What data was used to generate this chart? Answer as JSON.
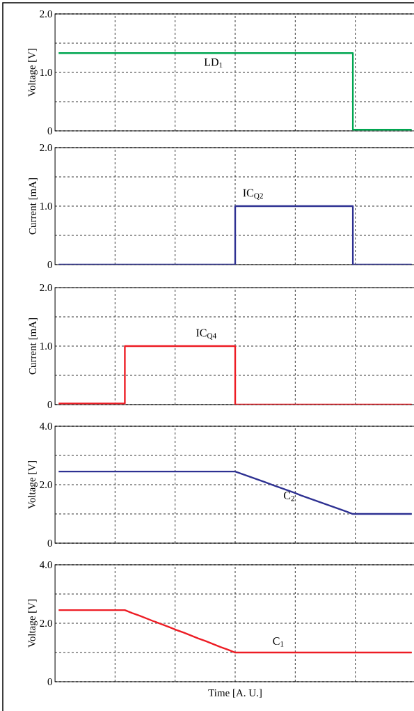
{
  "chart_data": [
    {
      "type": "step",
      "ylabel": "Voltage [V]",
      "categories": [
        null,
        null,
        null,
        null,
        null,
        null,
        null,
        null,
        null,
        null,
        null,
        null,
        null,
        null,
        null,
        null,
        null,
        null,
        null,
        null,
        null,
        null,
        null,
        null,
        null,
        null,
        null,
        null,
        null,
        null,
        null,
        null,
        null,
        null,
        null,
        null,
        null,
        null,
        null,
        null,
        null,
        null,
        null,
        null,
        null,
        null,
        null,
        null,
        null
      ],
      "series": [
        {
          "color": "#00a651",
          "values": [
            1.33,
            1.33,
            1.33,
            1.33,
            1.33,
            1.33,
            1.33,
            1.33,
            1.33,
            1.33,
            1.33,
            1.33,
            1.33,
            1.33,
            1.33,
            1.33,
            1.33,
            1.33,
            1.33,
            1.33,
            1.33,
            1.33,
            1.33,
            1.33,
            1.33,
            1.33,
            1.33,
            1.33,
            1.33,
            1.33,
            1.33,
            1.33,
            1.33,
            1.33,
            1.33,
            1.33,
            1.33,
            1.33,
            1.33,
            1.33,
            0.02,
            0.02,
            0.02,
            0.02,
            0.02,
            0.02,
            0.02,
            0.02,
            0.02
          ]
        }
      ],
      "ylim": [
        0,
        2
      ],
      "yticks": [
        0,
        {
          "value": 0.5,
          "label": null
        },
        {
          "value": 1,
          "label": "1.0"
        },
        {
          "value": 1.5,
          "label": null
        },
        {
          "value": 2,
          "label": "2.0"
        }
      ],
      "grid": true,
      "tick_labels": "y",
      "annotations": [
        "LD$_{1}$"
      ]
    },
    {
      "type": "step",
      "ylabel": "Current [mA]",
      "categories": [
        null,
        null,
        null,
        null,
        null,
        null,
        null,
        null,
        null,
        null,
        null,
        null,
        null,
        null,
        null,
        null,
        null,
        null,
        null,
        null,
        null,
        null,
        null,
        null,
        null,
        null,
        null,
        null,
        null,
        null,
        null,
        null,
        null,
        null,
        null,
        null,
        null,
        null,
        null,
        null,
        null,
        null,
        null,
        null,
        null,
        null,
        null,
        null,
        null
      ],
      "series": [
        {
          "color": "#2e3192",
          "values": [
            0,
            0,
            0,
            0,
            0,
            0,
            0,
            0,
            0,
            0,
            0,
            0,
            0,
            0,
            0,
            0,
            0,
            0,
            0,
            0,
            0,
            0,
            0,
            0,
            1.0,
            1.0,
            1.0,
            1.0,
            1.0,
            1.0,
            1.0,
            1.0,
            1.0,
            1.0,
            1.0,
            1.0,
            1.0,
            1.0,
            1.0,
            1.0,
            0,
            0,
            0,
            0,
            0,
            0,
            0,
            0,
            0
          ]
        }
      ],
      "ylim": [
        0,
        2
      ],
      "yticks": [
        0,
        {
          "value": 0.5,
          "label": null
        },
        {
          "value": 1,
          "label": "1.0"
        },
        {
          "value": 1.5,
          "label": null
        },
        {
          "value": 2,
          "label": "2.0"
        }
      ],
      "grid": true,
      "tick_labels": "y",
      "annotations": [
        "IC$_{Q2}$"
      ]
    },
    {
      "type": "step",
      "ylabel": "Current [mA]",
      "categories": [
        null,
        null,
        null,
        null,
        null,
        null,
        null,
        null,
        null,
        null,
        null,
        null,
        null,
        null,
        null,
        null,
        null,
        null,
        null,
        null,
        null,
        null,
        null,
        null,
        null,
        null,
        null,
        null,
        null,
        null,
        null,
        null,
        null,
        null,
        null,
        null,
        null,
        null,
        null,
        null,
        null,
        null,
        null,
        null,
        null,
        null,
        null,
        null,
        null
      ],
      "series": [
        {
          "color": "#ed1c24",
          "values": [
            0.02,
            0.02,
            0.02,
            0.02,
            0.02,
            0.02,
            0.02,
            0.02,
            0.02,
            1.0,
            1.0,
            1.0,
            1.0,
            1.0,
            1.0,
            1.0,
            1.0,
            1.0,
            1.0,
            1.0,
            1.0,
            1.0,
            1.0,
            1.0,
            0,
            0,
            0,
            0,
            0,
            0,
            0,
            0,
            0,
            0,
            0,
            0,
            0,
            0,
            0,
            0,
            0,
            0,
            0,
            0,
            0,
            0,
            0,
            0,
            0
          ]
        }
      ],
      "ylim": [
        0,
        2
      ],
      "yticks": [
        0,
        {
          "value": 0.5,
          "label": null
        },
        {
          "value": 1,
          "label": "1.0"
        },
        {
          "value": 1.5,
          "label": null
        },
        {
          "value": 2,
          "label": "2.0"
        }
      ],
      "grid": true,
      "tick_labels": "y",
      "annotations": [
        "IC$_{Q4}$"
      ]
    },
    {
      "type": "line",
      "ylabel": "Voltage [V]",
      "categories": [
        null,
        null,
        null,
        null,
        null,
        null,
        null,
        null,
        null,
        null,
        null,
        null,
        null,
        null,
        null,
        null,
        null,
        null,
        null,
        null,
        null,
        null,
        null,
        null,
        null,
        null,
        null,
        null,
        null,
        null,
        null,
        null,
        null,
        null,
        null,
        null,
        null,
        null,
        null,
        null,
        null,
        null,
        null,
        null,
        null,
        null,
        null,
        null,
        null
      ],
      "series": [
        {
          "color": "#2e3192",
          "values": [
            2.45,
            2.45,
            2.45,
            2.45,
            2.45,
            2.45,
            2.45,
            2.45,
            2.45,
            2.45,
            2.45,
            2.45,
            2.45,
            2.45,
            2.45,
            2.45,
            2.45,
            2.45,
            2.45,
            2.45,
            2.45,
            2.45,
            2.45,
            2.45,
            2.45,
            2.36,
            2.27,
            2.18,
            2.09,
            2.0,
            1.91,
            1.82,
            1.73,
            1.63,
            1.54,
            1.45,
            1.36,
            1.27,
            1.18,
            1.09,
            1.0,
            1.0,
            1.0,
            1.0,
            1.0,
            1.0,
            1.0,
            1.0,
            1.0
          ]
        }
      ],
      "ylim": [
        0,
        4
      ],
      "yticks": [
        0,
        {
          "value": 1,
          "label": null
        },
        {
          "value": 2,
          "label": "2.0"
        },
        {
          "value": 3,
          "label": null
        },
        {
          "value": 4,
          "label": "4.0"
        }
      ],
      "grid": true,
      "tick_labels": "y",
      "annotations": [
        "C$_{2}$"
      ]
    },
    {
      "type": "line",
      "ylabel": "Voltage [V]",
      "xlabel": "Time [A. U.]",
      "categories": [
        null,
        null,
        null,
        null,
        null,
        null,
        null,
        null,
        null,
        null,
        null,
        null,
        null,
        null,
        null,
        null,
        null,
        null,
        null,
        null,
        null,
        null,
        null,
        null,
        null,
        null,
        null,
        null,
        null,
        null,
        null,
        null,
        null,
        null,
        null,
        null,
        null,
        null,
        null,
        null,
        null,
        null,
        null,
        null,
        null,
        null,
        null,
        null,
        null
      ],
      "series": [
        {
          "color": "#ed1c24",
          "values": [
            2.45,
            2.45,
            2.45,
            2.45,
            2.45,
            2.45,
            2.45,
            2.45,
            2.45,
            2.45,
            2.35,
            2.26,
            2.16,
            2.06,
            1.97,
            1.87,
            1.77,
            1.68,
            1.58,
            1.48,
            1.39,
            1.29,
            1.19,
            1.1,
            1.0,
            1.0,
            1.0,
            1.0,
            1.0,
            1.0,
            1.0,
            1.0,
            1.0,
            1.0,
            1.0,
            1.0,
            1.0,
            1.0,
            1.0,
            1.0,
            1.0,
            1.0,
            1.0,
            1.0,
            1.0,
            1.0,
            1.0,
            1.0,
            1.0
          ]
        }
      ],
      "ylim": [
        0,
        4
      ],
      "yticks": [
        0,
        {
          "value": 1,
          "label": null
        },
        {
          "value": 2,
          "label": "2.0"
        },
        {
          "value": 3,
          "label": null
        },
        {
          "value": 4,
          "label": "4.0"
        }
      ],
      "grid": true,
      "tick_labels": "y",
      "annotations": [
        "C$_{1}$"
      ]
    }
  ]
}
